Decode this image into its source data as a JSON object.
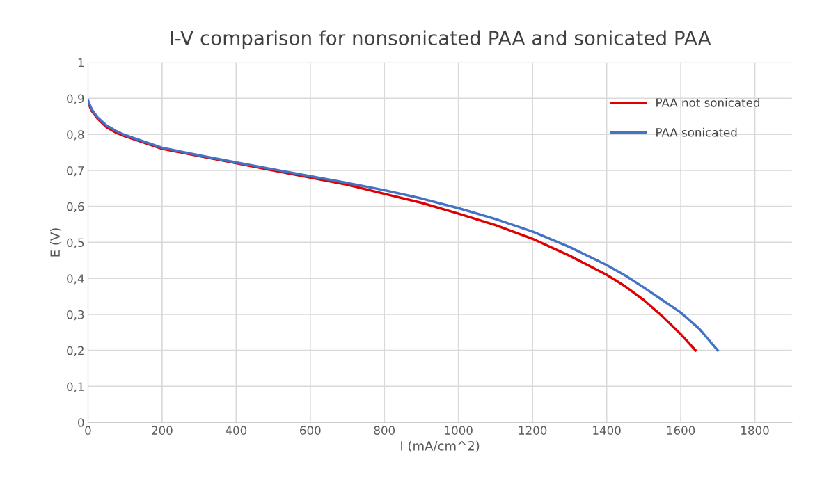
{
  "chart_data": {
    "type": "line",
    "title": "I-V comparison for nonsonicated PAA and sonicated PAA",
    "xlabel": "I (mA/cm^2)",
    "ylabel": "E (V)",
    "xlim": [
      0,
      1900
    ],
    "xticks": [
      0,
      200,
      400,
      600,
      800,
      1000,
      1200,
      1400,
      1600,
      1800
    ],
    "ylim": [
      0,
      1
    ],
    "yticks": [
      {
        "value": 0,
        "label": "0"
      },
      {
        "value": 0.1,
        "label": "0,1"
      },
      {
        "value": 0.2,
        "label": "0,2"
      },
      {
        "value": 0.3,
        "label": "0,3"
      },
      {
        "value": 0.4,
        "label": "0,4"
      },
      {
        "value": 0.5,
        "label": "0,5"
      },
      {
        "value": 0.6,
        "label": "0,6"
      },
      {
        "value": 0.7,
        "label": "0,7"
      },
      {
        "value": 0.8,
        "label": "0,8"
      },
      {
        "value": 0.9,
        "label": "0,9"
      },
      {
        "value": 1,
        "label": "1"
      }
    ],
    "grid": true,
    "legend": "top right",
    "marker": "none",
    "line_style": "solid",
    "series": [
      {
        "name": "PAA not sonicated",
        "color": "#e00000",
        "x": [
          0,
          10,
          25,
          50,
          75,
          100,
          200,
          300,
          400,
          500,
          600,
          700,
          800,
          900,
          1000,
          1100,
          1200,
          1300,
          1400,
          1450,
          1500,
          1550,
          1600,
          1640
        ],
        "values": [
          0.89,
          0.865,
          0.845,
          0.82,
          0.805,
          0.795,
          0.76,
          0.74,
          0.72,
          0.7,
          0.68,
          0.66,
          0.635,
          0.61,
          0.58,
          0.548,
          0.51,
          0.463,
          0.41,
          0.378,
          0.34,
          0.295,
          0.245,
          0.2
        ]
      },
      {
        "name": "PAA sonicated",
        "color": "#4472c4",
        "x": [
          0,
          10,
          25,
          50,
          75,
          100,
          200,
          300,
          400,
          500,
          600,
          700,
          800,
          900,
          1000,
          1100,
          1200,
          1300,
          1400,
          1450,
          1500,
          1550,
          1600,
          1650,
          1700
        ],
        "values": [
          0.895,
          0.87,
          0.848,
          0.825,
          0.81,
          0.798,
          0.763,
          0.742,
          0.722,
          0.703,
          0.684,
          0.665,
          0.645,
          0.622,
          0.595,
          0.565,
          0.53,
          0.487,
          0.437,
          0.408,
          0.375,
          0.34,
          0.305,
          0.26,
          0.2
        ]
      }
    ]
  }
}
